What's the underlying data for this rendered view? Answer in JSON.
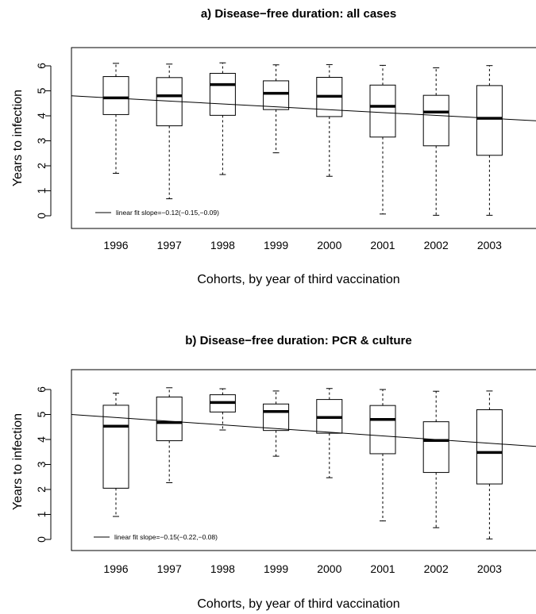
{
  "chart_data": [
    {
      "type": "box",
      "title": "a) Disease−free duration: all cases",
      "xlabel": "Cohorts, by year of third vaccination",
      "ylabel": "Years to infection",
      "ylim": [
        0,
        6
      ],
      "yticks": [
        "0",
        "1",
        "2",
        "3",
        "4",
        "5",
        "6"
      ],
      "categories": [
        "1996",
        "1997",
        "1998",
        "1999",
        "2000",
        "2001",
        "2002",
        "2003"
      ],
      "boxes": [
        {
          "min": 1.7,
          "q1": 4.05,
          "median": 4.72,
          "q3": 5.57,
          "max": 6.1
        },
        {
          "min": 0.68,
          "q1": 3.6,
          "median": 4.8,
          "q3": 5.53,
          "max": 6.07
        },
        {
          "min": 1.65,
          "q1": 4.02,
          "median": 5.25,
          "q3": 5.7,
          "max": 6.12
        },
        {
          "min": 2.52,
          "q1": 4.25,
          "median": 4.9,
          "q3": 5.4,
          "max": 6.04
        },
        {
          "min": 1.58,
          "q1": 3.97,
          "median": 4.78,
          "q3": 5.54,
          "max": 6.05
        },
        {
          "min": 0.07,
          "q1": 3.15,
          "median": 4.38,
          "q3": 5.23,
          "max": 6.02
        },
        {
          "min": 0.02,
          "q1": 2.8,
          "median": 4.15,
          "q3": 4.82,
          "max": 5.92
        },
        {
          "min": 0.02,
          "q1": 2.42,
          "median": 3.9,
          "q3": 5.21,
          "max": 6.01
        }
      ],
      "fit_line": {
        "y_at_left_edge": 4.8,
        "y_at_right_edge": 3.8
      },
      "legend": {
        "label": "linear fit slope=−0.12(−0.15,−0.09)",
        "position": "bottom-left"
      }
    },
    {
      "type": "box",
      "title": "b) Disease−free duration: PCR & culture",
      "xlabel": "Cohorts, by year of third vaccination",
      "ylabel": "Years to infection",
      "ylim": [
        0,
        6
      ],
      "yticks": [
        "0",
        "1",
        "2",
        "3",
        "4",
        "5",
        "6"
      ],
      "categories": [
        "1996",
        "1997",
        "1998",
        "1999",
        "2000",
        "2001",
        "2002",
        "2003"
      ],
      "boxes": [
        {
          "min": 0.92,
          "q1": 2.05,
          "median": 4.53,
          "q3": 5.37,
          "max": 5.85
        },
        {
          "min": 2.27,
          "q1": 3.95,
          "median": 4.68,
          "q3": 5.7,
          "max": 6.07
        },
        {
          "min": 4.38,
          "q1": 5.1,
          "median": 5.48,
          "q3": 5.79,
          "max": 6.03
        },
        {
          "min": 3.33,
          "q1": 4.36,
          "median": 5.12,
          "q3": 5.42,
          "max": 5.94
        },
        {
          "min": 2.47,
          "q1": 4.25,
          "median": 4.88,
          "q3": 5.6,
          "max": 6.04
        },
        {
          "min": 0.74,
          "q1": 3.43,
          "median": 4.8,
          "q3": 5.36,
          "max": 6.0
        },
        {
          "min": 0.47,
          "q1": 2.68,
          "median": 3.96,
          "q3": 4.71,
          "max": 5.93
        },
        {
          "min": 0.02,
          "q1": 2.22,
          "median": 3.48,
          "q3": 5.19,
          "max": 5.94
        }
      ],
      "fit_line": {
        "y_at_left_edge": 5.0,
        "y_at_right_edge": 3.72
      },
      "legend": {
        "label": "linear fit slope=−0.15(−0.22,−0.08)",
        "position": "bottom-left"
      }
    }
  ]
}
